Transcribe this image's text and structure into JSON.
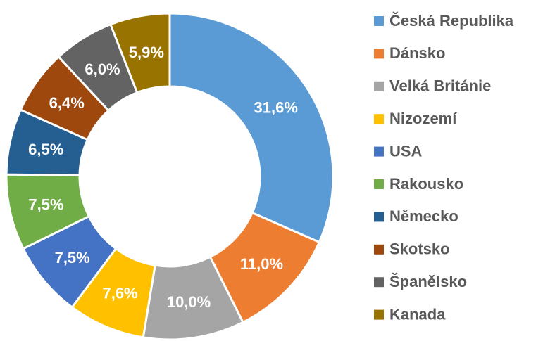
{
  "chart_data": {
    "type": "donut",
    "categories": [
      "Česká Republika",
      "Dánsko",
      "Velká Británie",
      "Nizozemí",
      "USA",
      "Rakousko",
      "Německo",
      "Skotsko",
      "Španělsko",
      "Kanada"
    ],
    "values": [
      31.6,
      11.0,
      10.0,
      7.6,
      7.5,
      7.5,
      6.5,
      6.4,
      6.0,
      5.9
    ],
    "value_labels": [
      "31,6%",
      "11,0%",
      "10,0%",
      "7,6%",
      "7,5%",
      "7,5%",
      "6,5%",
      "6,4%",
      "6,0%",
      "5,9%"
    ],
    "colors": [
      "#5b9bd5",
      "#ed7d31",
      "#a5a5a5",
      "#ffc000",
      "#4472c4",
      "#70ad47",
      "#255e91",
      "#9e480e",
      "#636363",
      "#997300"
    ],
    "legend": "right"
  }
}
